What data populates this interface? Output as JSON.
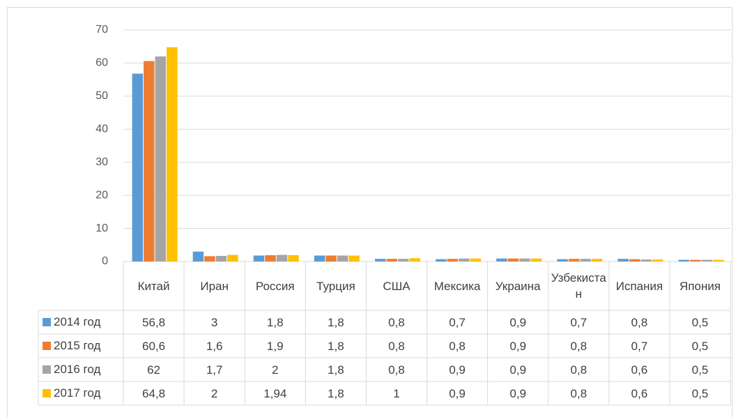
{
  "chart_data": {
    "type": "bar",
    "categories": [
      "Китай",
      "Иран",
      "Россия",
      "Турция",
      "США",
      "Мексика",
      "Украина",
      "Узбекистан",
      "Испания",
      "Япония"
    ],
    "series": [
      {
        "name": "2014 год",
        "color": "#5b9bd5",
        "values": [
          56.8,
          3,
          1.8,
          1.8,
          0.8,
          0.7,
          0.9,
          0.7,
          0.8,
          0.5
        ],
        "value_labels": [
          "56,8",
          "3",
          "1,8",
          "1,8",
          "0,8",
          "0,7",
          "0,9",
          "0,7",
          "0,8",
          "0,5"
        ]
      },
      {
        "name": "2015 год",
        "color": "#ed7d31",
        "values": [
          60.6,
          1.6,
          1.9,
          1.8,
          0.8,
          0.8,
          0.9,
          0.8,
          0.7,
          0.5
        ],
        "value_labels": [
          "60,6",
          "1,6",
          "1,9",
          "1,8",
          "0,8",
          "0,8",
          "0,9",
          "0,8",
          "0,7",
          "0,5"
        ]
      },
      {
        "name": "2016 год",
        "color": "#a5a5a5",
        "values": [
          62,
          1.7,
          2,
          1.8,
          0.8,
          0.9,
          0.9,
          0.8,
          0.6,
          0.5
        ],
        "value_labels": [
          "62",
          "1,7",
          "2",
          "1,8",
          "0,8",
          "0,9",
          "0,9",
          "0,8",
          "0,6",
          "0,5"
        ]
      },
      {
        "name": "2017 год",
        "color": "#ffc000",
        "values": [
          64.8,
          2,
          1.94,
          1.8,
          1,
          0.9,
          0.9,
          0.8,
          0.6,
          0.5
        ],
        "value_labels": [
          "64,8",
          "2",
          "1,94",
          "1,8",
          "1",
          "0,9",
          "0,9",
          "0,8",
          "0,6",
          "0,5"
        ]
      }
    ],
    "ylim": [
      0,
      70
    ],
    "yticks": [
      0,
      10,
      20,
      30,
      40,
      50,
      60,
      70
    ],
    "grid": true
  }
}
